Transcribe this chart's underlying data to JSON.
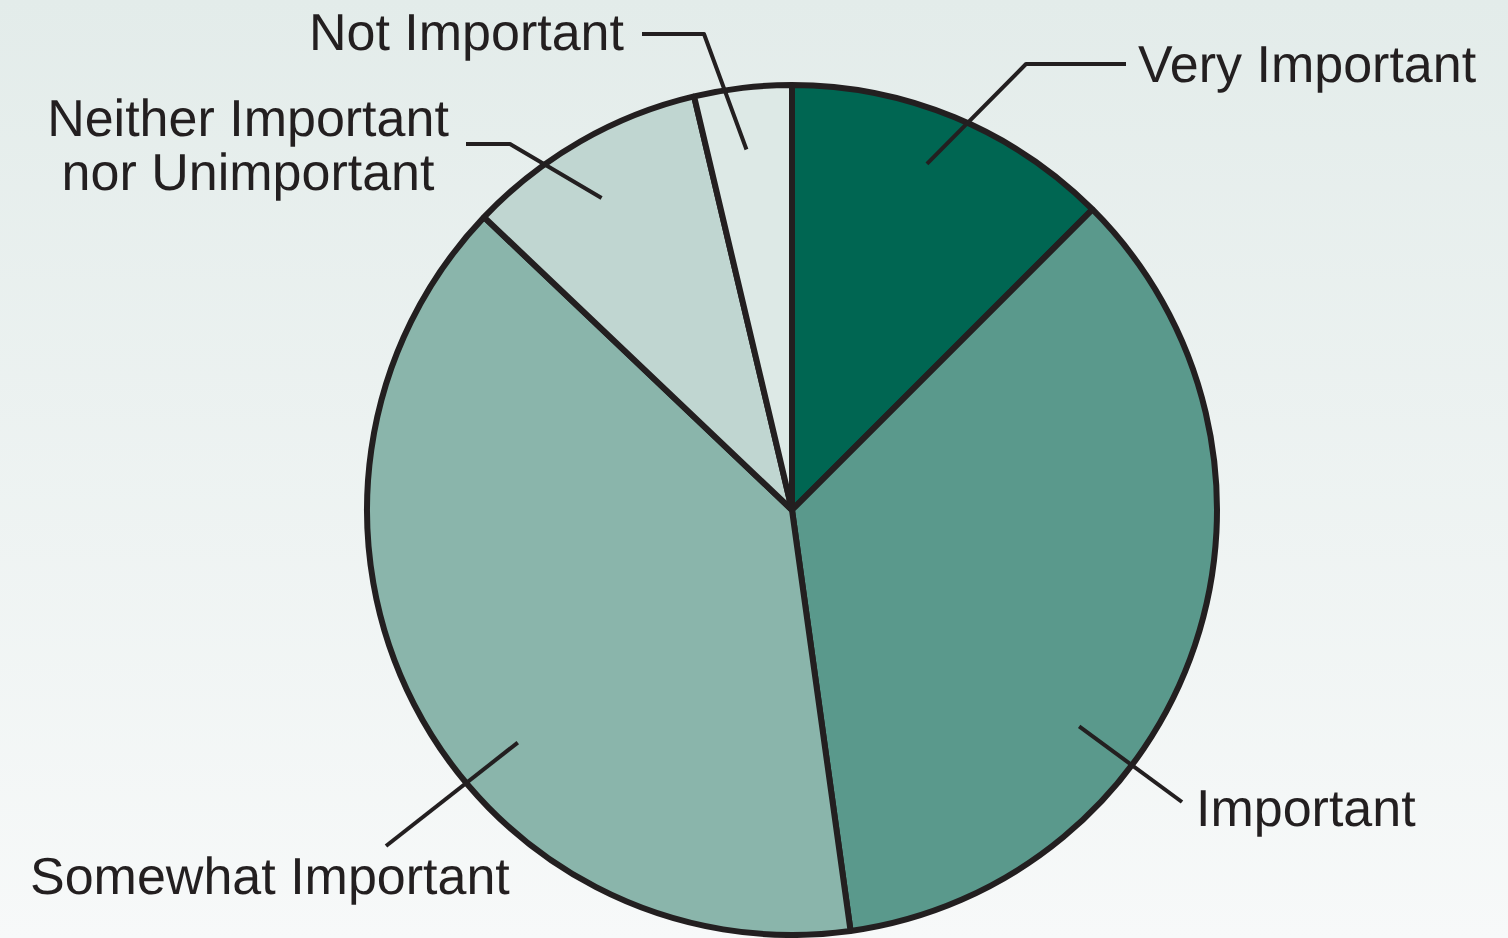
{
  "chart_data": {
    "type": "pie",
    "categories": [
      "Very Important",
      "Important",
      "Somewhat Important",
      "Neither Important nor Unimportant",
      "Not Important"
    ],
    "values": [
      12.5,
      35.3,
      39.3,
      9.2,
      3.7
    ],
    "colors": [
      "#006652",
      "#5a998c",
      "#8ab5ab",
      "#c0d6d1",
      "#dde9e6"
    ]
  }
}
